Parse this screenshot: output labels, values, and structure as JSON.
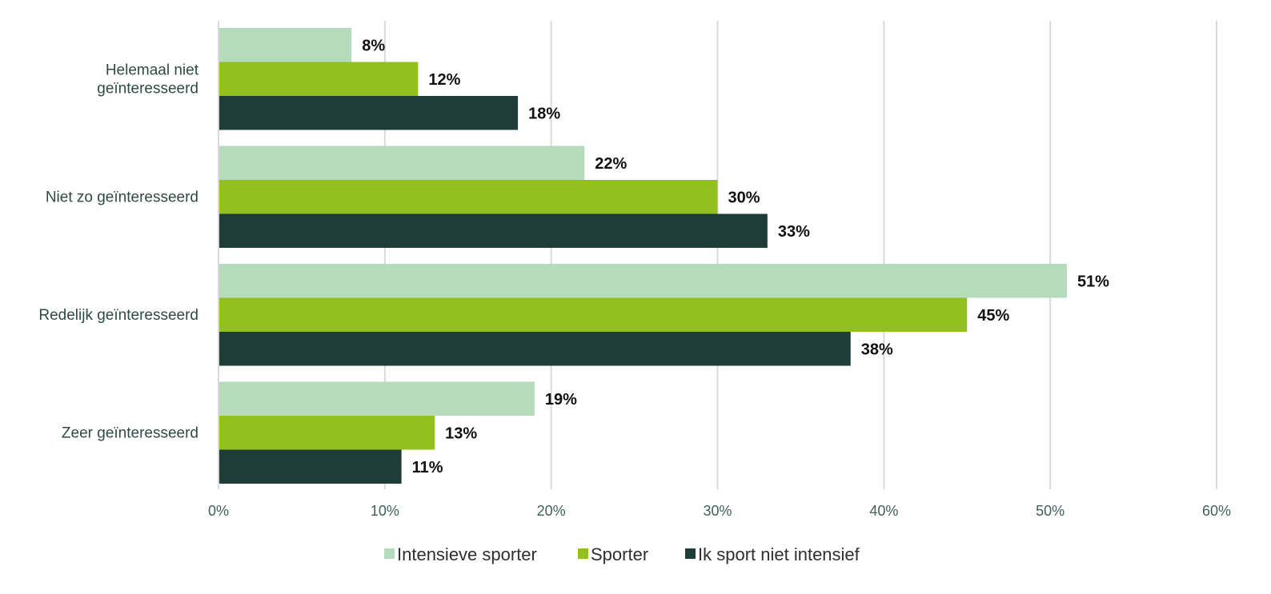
{
  "chart_data": {
    "type": "bar",
    "orientation": "horizontal",
    "categories": [
      "Helemaal niet geïnteresseerd",
      "Niet zo geïnteresseerd",
      "Redelijk geïnteresseerd",
      "Zeer geïnteresseerd"
    ],
    "category_label_lines": [
      [
        "Helemaal niet",
        "geïnteresseerd"
      ],
      [
        "Niet zo geïnteresseerd"
      ],
      [
        "Redelijk geïnteresseerd"
      ],
      [
        "Zeer geïnteresseerd"
      ]
    ],
    "series": [
      {
        "name": "Intensieve sporter",
        "color": "#b5dbbd",
        "values": [
          8,
          22,
          51,
          19
        ],
        "labels": [
          "8%",
          "22%",
          "51%",
          "19%"
        ]
      },
      {
        "name": "Sporter",
        "color": "#93c01f",
        "values": [
          12,
          30,
          45,
          13
        ],
        "labels": [
          "12%",
          "30%",
          "45%",
          "13%"
        ]
      },
      {
        "name": "Ik sport niet intensief",
        "color": "#1e3d38",
        "values": [
          18,
          33,
          38,
          11
        ],
        "labels": [
          "18%",
          "33%",
          "38%",
          "11%"
        ]
      }
    ],
    "xlim": [
      0,
      60
    ],
    "x_ticks": [
      0,
      10,
      20,
      30,
      40,
      50,
      60
    ],
    "x_tick_labels": [
      "0%",
      "10%",
      "20%",
      "30%",
      "40%",
      "50%",
      "60%"
    ],
    "grid": true,
    "legend": "bottom-center",
    "title": "",
    "xlabel": "",
    "ylabel": ""
  }
}
